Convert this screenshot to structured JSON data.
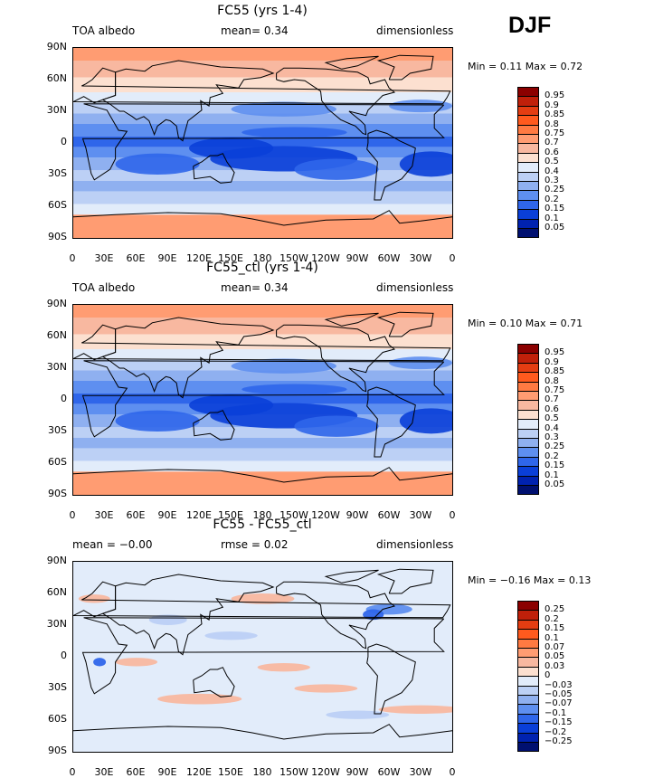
{
  "season": "DJF",
  "lat_labels": [
    "90N",
    "60N",
    "30N",
    "0",
    "30S",
    "60S",
    "90S"
  ],
  "lon_labels": [
    "0",
    "30E",
    "60E",
    "90E",
    "120E",
    "150E",
    "180",
    "150W",
    "120W",
    "90W",
    "60W",
    "30W",
    "0"
  ],
  "panels": [
    {
      "title": "FC55 (yrs 1-4)",
      "left_label": "TOA albedo",
      "mid_label": "mean=   0.34",
      "right_label": "dimensionless",
      "minmax": "Min =   0.11  Max =   0.72",
      "legend_levels": [
        "0.95",
        "0.9",
        "0.85",
        "0.8",
        "0.75",
        "0.7",
        "0.6",
        "0.5",
        "0.4",
        "0.3",
        "0.25",
        "0.2",
        "0.15",
        "0.1",
        "0.05"
      ],
      "legend_colors": [
        "#8b0000",
        "#c0200a",
        "#e43d12",
        "#ff5a1e",
        "#ff7a42",
        "#ff9c72",
        "#f8b8a0",
        "#fce0d0",
        "#e2ecfa",
        "#bcd0f5",
        "#8fb0f0",
        "#5e8ff0",
        "#2f66ea",
        "#0a3fd8",
        "#0022b0",
        "#001070"
      ]
    },
    {
      "title": "FC55_ctl (yrs 1-4)",
      "left_label": "TOA albedo",
      "mid_label": "mean=   0.34",
      "right_label": "dimensionless",
      "minmax": "Min =   0.10  Max =   0.71",
      "legend_levels": [
        "0.95",
        "0.9",
        "0.85",
        "0.8",
        "0.75",
        "0.7",
        "0.6",
        "0.5",
        "0.4",
        "0.3",
        "0.25",
        "0.2",
        "0.15",
        "0.1",
        "0.05"
      ],
      "legend_colors": [
        "#8b0000",
        "#c0200a",
        "#e43d12",
        "#ff5a1e",
        "#ff7a42",
        "#ff9c72",
        "#f8b8a0",
        "#fce0d0",
        "#e2ecfa",
        "#bcd0f5",
        "#8fb0f0",
        "#5e8ff0",
        "#2f66ea",
        "#0a3fd8",
        "#0022b0",
        "#001070"
      ]
    },
    {
      "title": "FC55 - FC55_ctl",
      "left_label": "mean =  −0.00",
      "mid_label": "rmse =   0.02",
      "right_label": "dimensionless",
      "minmax": "Min =  −0.16  Max =    0.13",
      "legend_levels": [
        "0.25",
        "0.2",
        "0.15",
        "0.1",
        "0.07",
        "0.05",
        "0.03",
        "0",
        "−0.03",
        "−0.05",
        "−0.07",
        "−0.1",
        "−0.15",
        "−0.2",
        "−0.25"
      ],
      "legend_colors": [
        "#8b0000",
        "#c0200a",
        "#e43d12",
        "#ff5a1e",
        "#ff7a42",
        "#ff9c72",
        "#f8b8a0",
        "#fce0d0",
        "#e2ecfa",
        "#bcd0f5",
        "#8fb0f0",
        "#5e8ff0",
        "#2f66ea",
        "#0a3fd8",
        "#0022b0",
        "#001070"
      ]
    }
  ]
}
